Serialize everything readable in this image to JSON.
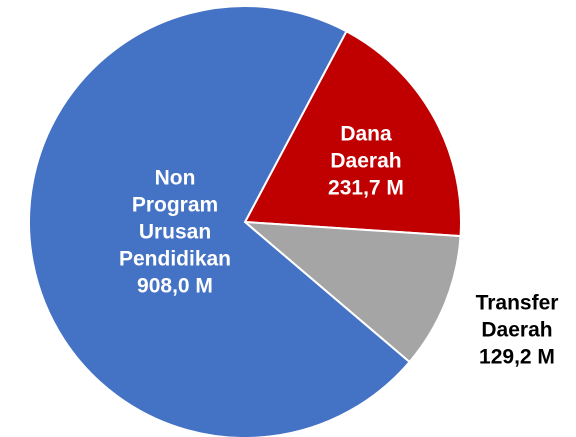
{
  "chart_data": {
    "type": "pie",
    "categories": [
      "Dana Daerah",
      "Transfer Daerah",
      "Non Program Urusan Pendidikan"
    ],
    "values": [
      231.7,
      129.2,
      908.0
    ],
    "value_labels": [
      "231,7 M",
      "129,2 M",
      "908,0 M"
    ],
    "colors": [
      "#c00000",
      "#a5a5a5",
      "#4472c4"
    ]
  }
}
